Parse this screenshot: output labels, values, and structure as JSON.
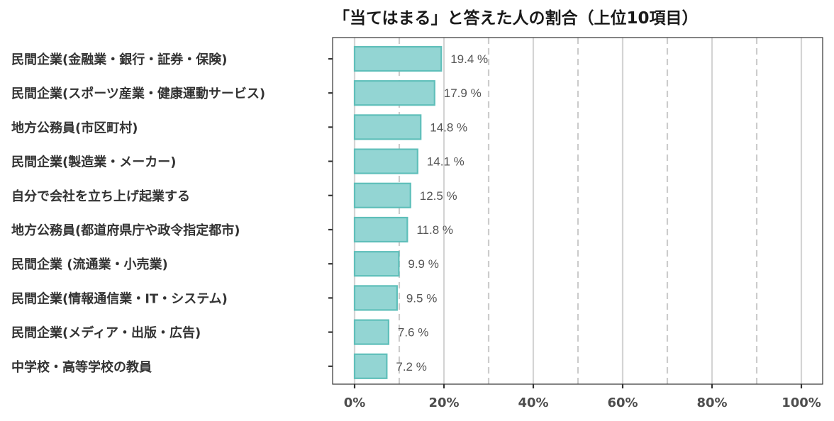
{
  "chart_data": {
    "type": "bar",
    "orientation": "horizontal",
    "title": "「当てはまる」と答えた人の割合（上位10項目）",
    "categories": [
      "民間企業(金融業・銀行・証券・保険)",
      "民間企業(スポーツ産業・健康運動サービス)",
      "地方公務員(市区町村)",
      "民間企業(製造業・メーカー)",
      "自分で会社を立ち上げ起業する",
      "地方公務員(都道府県庁や政令指定都市)",
      "民間企業 (流通業・小売業)",
      "民間企業(情報通信業・IT・システム)",
      "民間企業(メディア・出版・広告)",
      "中学校・高等学校の教員"
    ],
    "values": [
      19.4,
      17.9,
      14.8,
      14.1,
      12.5,
      11.8,
      9.9,
      9.5,
      7.6,
      7.2
    ],
    "value_labels": [
      "19.4 %",
      "17.9 %",
      "14.8 %",
      "14.1 %",
      "12.5 %",
      "11.8 %",
      "9.9 %",
      "9.5 %",
      "7.6 %",
      "7.2 %"
    ],
    "xlim": [
      0,
      100
    ],
    "x_ticks": [
      0,
      20,
      40,
      60,
      80,
      100
    ],
    "x_tick_labels": [
      "0%",
      "20%",
      "40%",
      "60%",
      "80%",
      "100%"
    ],
    "minor_gridlines": [
      10,
      30,
      50,
      70,
      90
    ],
    "grid": true,
    "bar_fill": "#93d5d3",
    "bar_stroke": "#5fbfba",
    "xlabel": "",
    "ylabel": ""
  }
}
